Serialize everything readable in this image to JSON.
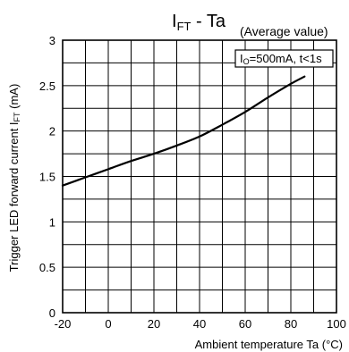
{
  "chart_data": {
    "type": "line",
    "title_main": "I",
    "title_sub": "FT",
    "title_rest": " - Ta",
    "subtitle": "(Average value)",
    "condition_box": {
      "prefix": "I",
      "sub": "O",
      "rest": "=500mA, t<1s"
    },
    "ylabel_main": "Trigger LED forward current I",
    "ylabel_sub": "FT",
    "ylabel_end": " (mA)",
    "xlabel": "Ambient temperature Ta (°C)",
    "xlim": [
      -20,
      100
    ],
    "ylim": [
      0,
      3
    ],
    "xticks": [
      -20,
      0,
      20,
      40,
      60,
      80,
      100
    ],
    "xtick_labels": [
      "-20",
      "0",
      "20",
      "40",
      "60",
      "80",
      "100"
    ],
    "yticks": [
      0,
      0.5,
      1,
      1.5,
      2,
      2.5,
      3
    ],
    "ytick_labels": [
      "0",
      "0.5",
      "1",
      "1.5",
      "2",
      "2.5",
      "3"
    ],
    "grid_x_step": 10,
    "grid_y_step": 0.25,
    "grid": true,
    "series": [
      {
        "x": [
          -20,
          -10,
          0,
          10,
          20,
          30,
          40,
          50,
          60,
          70,
          80,
          86
        ],
        "y": [
          1.4,
          1.49,
          1.58,
          1.67,
          1.75,
          1.84,
          1.94,
          2.07,
          2.21,
          2.37,
          2.52,
          2.6
        ]
      }
    ]
  }
}
